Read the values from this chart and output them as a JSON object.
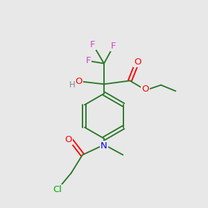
{
  "bg_color": "#e8e8e8",
  "atom_colors": {
    "F": "#cc44cc",
    "O": "#ff0000",
    "N": "#0000ff",
    "Cl": "#00aa00",
    "C_bond": "#2a7a2a",
    "H": "#888888"
  },
  "figsize": [
    3.0,
    3.0
  ],
  "dpi": 100,
  "bond_lw": 1.4,
  "font_size": 9.5
}
